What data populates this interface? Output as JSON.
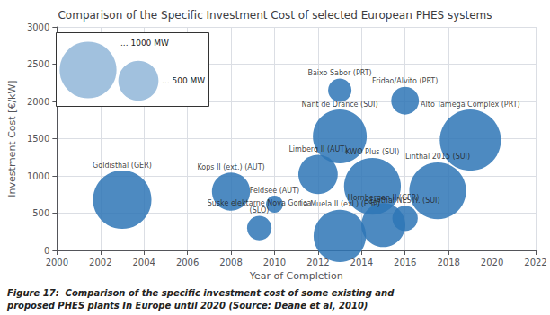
{
  "chart_data": {
    "type": "scatter",
    "title": "Comparison of the Specific Investment Cost of selected European PHES systems",
    "xlabel": "Year of Completion",
    "ylabel": "Investment Cost [€/kW]",
    "xlim": [
      2000,
      2022
    ],
    "ylim": [
      0,
      3000
    ],
    "xticks": [
      2000,
      2002,
      2004,
      2006,
      2008,
      2010,
      2012,
      2014,
      2016,
      2018,
      2020,
      2022
    ],
    "yticks": [
      0,
      500,
      1000,
      1500,
      2000,
      2500,
      3000
    ],
    "grid": true,
    "color": "#2e75b6",
    "labels": [
      "Goldisthal (GER)",
      "Kops II (ext.) (AUT)",
      "Suske elektarne Nova Gorica\n(SLO)",
      "Feldsee (AUT)",
      "Limberg II (AUT)",
      "Baixo Sabor (PRT)",
      "Nant de Drance (SUI)",
      "La Muela II (exL) (ESP)",
      "KWO Plus (SUI)",
      "Hornbergen II (GFR)",
      "Linthal NESTI. (SUI)",
      "Fridao/Alvito (PRT)",
      "Linthal 2015 (SUI)",
      "Alto Tamega Complex (PRT)"
    ],
    "x": [
      2003,
      2008,
      2009.3,
      2010,
      2012,
      2013,
      2013,
      2013,
      2014.5,
      2015,
      2016,
      2016,
      2017.5,
      2019
    ],
    "values": [
      680,
      790,
      300,
      620,
      1020,
      2150,
      1530,
      195,
      860,
      340,
      430,
      2010,
      800,
      1480
    ],
    "sizes": [
      1060,
      450,
      185,
      90,
      480,
      170,
      900,
      850,
      1000,
      600,
      200,
      240,
      1000,
      1160
    ],
    "size_legend": [
      {
        "value": 1000,
        "label": "... 1000 MW"
      },
      {
        "value": 500,
        "label": "... 500 MW"
      }
    ],
    "caption": [
      "Figure 17:  Comparison of the specific investment cost of some existing and",
      "proposed PHES plants In Europe until 2020 (Source: Deane et al, 2010)"
    ]
  }
}
